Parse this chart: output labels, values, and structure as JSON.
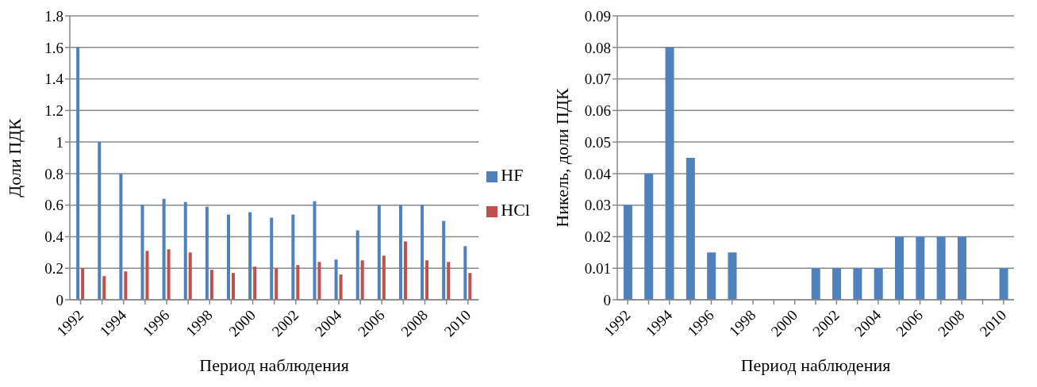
{
  "chart_data": [
    {
      "type": "bar",
      "xlabel": "Период наблюдения",
      "ylabel": "Доли ПДК",
      "categories": [
        "1992",
        null,
        "1994",
        null,
        "1996",
        null,
        "1998",
        null,
        "2000",
        null,
        "2002",
        null,
        "2004",
        null,
        "2006",
        null,
        "2008",
        null,
        "2010"
      ],
      "series": [
        {
          "name": "HF",
          "color": "#4f81bd",
          "values": [
            1.6,
            1.0,
            0.8,
            0.6,
            0.64,
            0.62,
            0.59,
            0.54,
            0.555,
            0.52,
            0.54,
            0.625,
            0.255,
            0.44,
            0.6,
            0.6,
            0.6,
            0.5,
            0.34
          ]
        },
        {
          "name": "HCl",
          "color": "#c0504d",
          "values": [
            0.2,
            0.15,
            0.18,
            0.31,
            0.32,
            0.3,
            0.19,
            0.17,
            0.21,
            0.2,
            0.22,
            0.24,
            0.16,
            0.25,
            0.28,
            0.37,
            0.25,
            0.24,
            0.17
          ]
        }
      ],
      "ylim": [
        0,
        1.8
      ],
      "yticks": [
        0,
        0.2,
        0.4,
        0.6,
        0.8,
        1,
        1.2,
        1.4,
        1.6,
        1.8
      ],
      "grid": "y",
      "legend": "right"
    },
    {
      "type": "bar",
      "xlabel": "Период наблюдения",
      "ylabel": "Никель, доли ПДК",
      "categories": [
        "1992",
        null,
        "1994",
        null,
        "1996",
        null,
        "1998",
        null,
        "2000",
        null,
        "2002",
        null,
        "2004",
        null,
        "2006",
        null,
        "2008",
        null,
        "2010"
      ],
      "series": [
        {
          "color": "#4f81bd",
          "values": [
            0.03,
            0.04,
            0.08,
            0.045,
            0.015,
            0.015,
            0,
            0,
            0,
            0.01,
            0.01,
            0.01,
            0.01,
            0.02,
            0.02,
            0.02,
            0.02,
            0,
            0.01
          ]
        }
      ],
      "ylim": [
        0,
        0.09
      ],
      "yticks": [
        0,
        0.01,
        0.02,
        0.03,
        0.04,
        0.05,
        0.06,
        0.07,
        0.08,
        0.09
      ],
      "grid": "y"
    }
  ]
}
